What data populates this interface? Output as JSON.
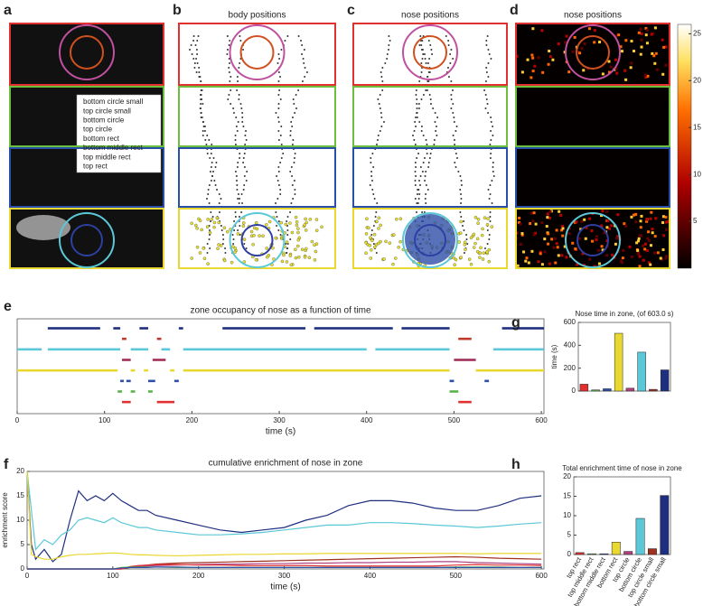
{
  "panels": [
    {
      "letter": "a",
      "legend": [
        {
          "label": "bottom circle small",
          "color": "#1f2f80"
        },
        {
          "label": "top circle small",
          "color": "#c0392b"
        },
        {
          "label": "bottom circle",
          "color": "#5bc8d8"
        },
        {
          "label": "top circle",
          "color": "#a0305a"
        },
        {
          "label": "bottom rect",
          "color": "#e8d830"
        },
        {
          "label": "bottom middle rect",
          "color": "#2d4fa8"
        },
        {
          "label": "top middle rect",
          "color": "#5ab34a"
        },
        {
          "label": "top rect",
          "color": "#e03030"
        }
      ]
    },
    {
      "letter": "b",
      "title": "body positions"
    },
    {
      "letter": "c",
      "title": "nose positions"
    },
    {
      "letter": "d",
      "title": "nose positions",
      "colorbar": {
        "lim": [
          0,
          26
        ],
        "ticks": [
          5,
          10,
          15,
          20,
          25
        ]
      }
    }
  ],
  "chart_data": [
    {
      "letter": "e",
      "type": "raster",
      "title": "zone occupancy of nose as a function of time",
      "xlabel": "time (s)",
      "xlim": [
        0,
        603
      ],
      "xticks": [
        0,
        100,
        200,
        300,
        400,
        500,
        600
      ],
      "series": [
        {
          "color": "#1f2f80",
          "intervals": [
            [
              35,
              95
            ],
            [
              110,
              118
            ],
            [
              140,
              150
            ],
            [
              185,
              190
            ],
            [
              235,
              330
            ],
            [
              340,
              430
            ],
            [
              440,
              495
            ],
            [
              555,
              603
            ]
          ]
        },
        {
          "color": "#c0392b",
          "intervals": [
            [
              120,
              125
            ],
            [
              160,
              165
            ],
            [
              505,
              520
            ]
          ]
        },
        {
          "color": "#5bc8d8",
          "intervals": [
            [
              0,
              28
            ],
            [
              35,
              118
            ],
            [
              130,
              150
            ],
            [
              165,
              175
            ],
            [
              190,
              400
            ],
            [
              410,
              495
            ],
            [
              545,
              603
            ]
          ]
        },
        {
          "color": "#a0305a",
          "intervals": [
            [
              120,
              130
            ],
            [
              155,
              170
            ],
            [
              500,
              525
            ]
          ]
        },
        {
          "color": "#e8d830",
          "intervals": [
            [
              0,
              115
            ],
            [
              130,
              135
            ],
            [
              145,
              150
            ],
            [
              175,
              180
            ],
            [
              190,
              495
            ],
            [
              525,
              603
            ]
          ]
        },
        {
          "color": "#2d4fa8",
          "intervals": [
            [
              118,
              122
            ],
            [
              125,
              130
            ],
            [
              150,
              158
            ],
            [
              180,
              185
            ],
            [
              495,
              500
            ],
            [
              535,
              540
            ]
          ]
        },
        {
          "color": "#5ab34a",
          "intervals": [
            [
              115,
              120
            ],
            [
              130,
              135
            ],
            [
              150,
              155
            ],
            [
              495,
              505
            ]
          ]
        },
        {
          "color": "#e03030",
          "intervals": [
            [
              120,
              130
            ],
            [
              160,
              180
            ],
            [
              505,
              520
            ]
          ]
        }
      ]
    },
    {
      "letter": "g",
      "type": "bar",
      "title": "Nose time in zone, (of 603.0 s)",
      "ylabel": "time (s)",
      "ylim": [
        0,
        600
      ],
      "yticks": [
        0,
        200,
        400,
        600
      ],
      "values": [
        60,
        10,
        20,
        505,
        25,
        340,
        15,
        185
      ],
      "colors": [
        "#e03030",
        "#5ab34a",
        "#2d4fa8",
        "#e8d830",
        "#b04080",
        "#5bc8d8",
        "#a03020",
        "#1f2f80"
      ]
    },
    {
      "letter": "f",
      "type": "line",
      "title": "cumulative enrichment of nose in zone",
      "xlabel": "time (s)",
      "ylabel": "enrichment score",
      "xlim": [
        0,
        603
      ],
      "xticks": [
        0,
        100,
        200,
        300,
        400,
        500,
        600
      ],
      "ylim": [
        0,
        20
      ],
      "yticks": [
        0,
        5,
        10,
        15,
        20
      ],
      "x": [
        0,
        5,
        10,
        20,
        30,
        40,
        50,
        60,
        70,
        80,
        90,
        100,
        110,
        120,
        130,
        140,
        150,
        175,
        200,
        225,
        250,
        275,
        300,
        325,
        350,
        375,
        400,
        425,
        450,
        475,
        500,
        525,
        550,
        575,
        600
      ],
      "series": [
        {
          "color": "#1f2f80",
          "values": [
            20,
            5,
            2,
            4,
            1.5,
            3,
            10,
            16,
            14,
            15,
            14,
            15.5,
            14,
            13,
            12,
            12,
            11,
            10,
            9,
            8,
            7.5,
            8,
            8.5,
            10,
            11,
            13,
            14,
            14,
            13.5,
            12.5,
            12,
            12,
            13,
            14.5,
            15
          ]
        },
        {
          "color": "#5bc8d8",
          "values": [
            20,
            12,
            4,
            6,
            5,
            7,
            8,
            10,
            10.5,
            10,
            9.5,
            10.5,
            9.5,
            9,
            8.5,
            8.5,
            8,
            7.5,
            7,
            7,
            7.2,
            7.5,
            8,
            8.5,
            9,
            9,
            9.5,
            9.5,
            9.3,
            9,
            8.8,
            8.5,
            8.8,
            9.2,
            9.5
          ]
        },
        {
          "color": "#e8d830",
          "values": [
            20,
            3,
            2.5,
            2,
            2,
            2.5,
            2.8,
            3,
            3,
            3.1,
            3.2,
            3.3,
            3.2,
            3,
            2.9,
            2.9,
            2.8,
            2.7,
            2.8,
            2.9,
            3,
            3,
            3.1,
            3.1,
            3.2,
            3.2,
            3.2,
            3.2,
            3.2,
            3.2,
            3.2,
            3.1,
            3.2,
            3.2,
            3.2
          ]
        },
        {
          "color": "#a03020",
          "values": [
            0,
            0,
            0,
            0,
            0,
            0,
            0,
            0,
            0,
            0,
            0,
            0,
            0,
            0.3,
            0.6,
            0.8,
            1,
            1.2,
            1.3,
            1.4,
            1.5,
            1.6,
            1.7,
            1.8,
            1.9,
            2,
            2.1,
            2.2,
            2.3,
            2.4,
            2.5,
            2.4,
            2.2,
            2.1,
            2
          ]
        },
        {
          "color": "#b04080",
          "values": [
            0,
            0,
            0,
            0,
            0,
            0,
            0,
            0,
            0,
            0,
            0,
            0,
            0,
            0.4,
            0.5,
            0.6,
            0.7,
            0.8,
            0.9,
            1,
            1,
            1.1,
            1.1,
            1.2,
            1.2,
            1.3,
            1.3,
            1.4,
            1.4,
            1.5,
            1.5,
            1.3,
            1.2,
            1.1,
            1
          ]
        },
        {
          "color": "#e03030",
          "values": [
            0,
            0,
            0,
            0,
            0,
            0,
            0,
            0,
            0,
            0,
            0,
            0,
            0,
            0.5,
            0.7,
            0.8,
            0.9,
            0.9,
            0.8,
            0.8,
            0.7,
            0.7,
            0.7,
            0.7,
            0.6,
            0.6,
            0.6,
            0.6,
            0.6,
            0.6,
            0.8,
            0.9,
            0.8,
            0.8,
            0.7
          ]
        },
        {
          "color": "#5ab34a",
          "values": [
            0,
            0,
            0,
            0,
            0,
            0,
            0,
            0,
            0,
            0,
            0,
            0,
            0.3,
            0.4,
            0.4,
            0.4,
            0.4,
            0.3,
            0.3,
            0.3,
            0.3,
            0.3,
            0.3,
            0.3,
            0.3,
            0.3,
            0.3,
            0.3,
            0.3,
            0.3,
            0.4,
            0.4,
            0.4,
            0.3,
            0.3
          ]
        },
        {
          "color": "#2d4fa8",
          "values": [
            0,
            0,
            0,
            0,
            0,
            0,
            0,
            0,
            0,
            0,
            0,
            0,
            0.2,
            0.3,
            0.3,
            0.3,
            0.4,
            0.4,
            0.3,
            0.3,
            0.3,
            0.3,
            0.3,
            0.3,
            0.3,
            0.3,
            0.3,
            0.3,
            0.3,
            0.3,
            0.3,
            0.3,
            0.3,
            0.3,
            0.3
          ]
        }
      ]
    },
    {
      "letter": "h",
      "type": "bar",
      "title": "Total enrichment time of nose in zone",
      "ylim": [
        0,
        20
      ],
      "yticks": [
        0,
        5,
        10,
        15,
        20
      ],
      "categories": [
        "top rect",
        "top middle rect",
        "bottom middle rect",
        "bottom rect",
        "top circle",
        "bottom circle",
        "top circle small",
        "bottom circle small"
      ],
      "values": [
        0.5,
        0.2,
        0.2,
        3.2,
        0.8,
        9.3,
        1.5,
        15.2
      ],
      "colors": [
        "#e03030",
        "#5ab34a",
        "#2d4fa8",
        "#e8d830",
        "#b04080",
        "#5bc8d8",
        "#a03020",
        "#1f2f80"
      ]
    }
  ]
}
